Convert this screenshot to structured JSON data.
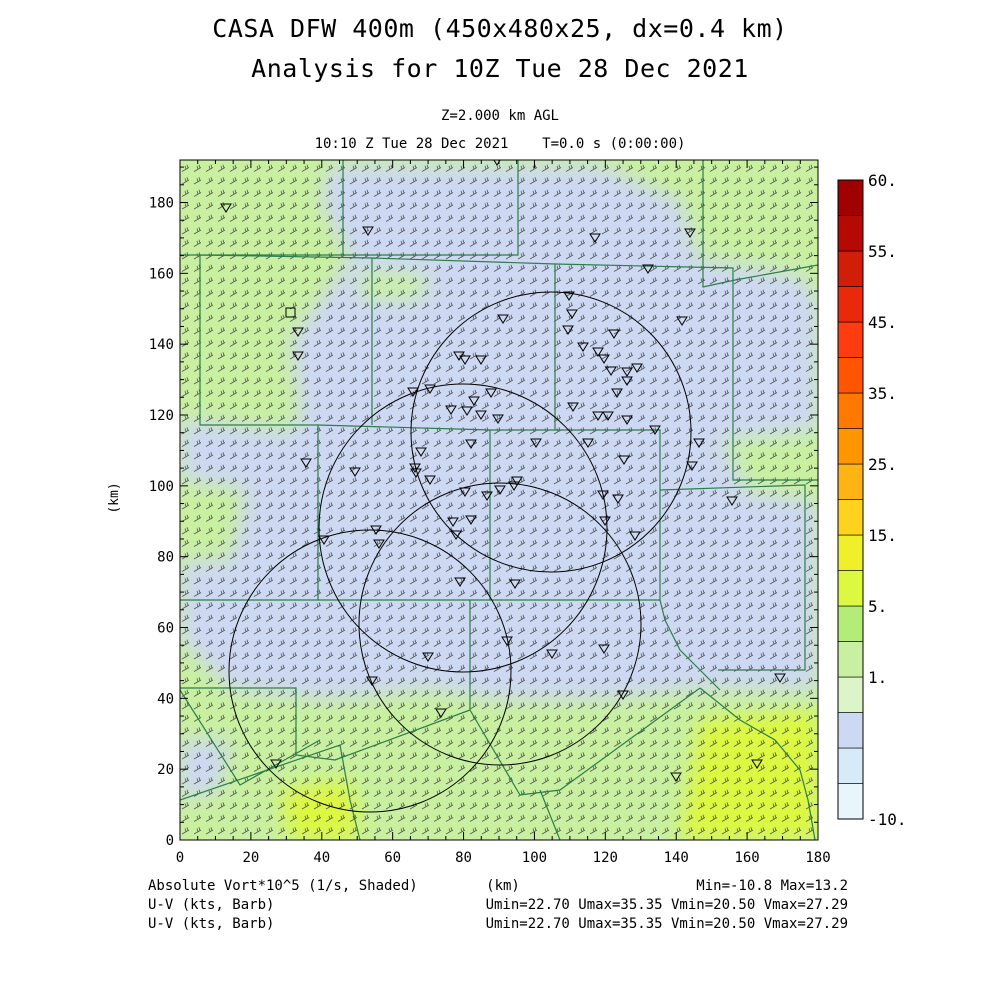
{
  "header": {
    "title_line1": "CASA DFW 400m (450x480x25, dx=0.4 km)",
    "title_line2": "Analysis for 10Z Tue 28 Dec 2021",
    "level": "Z=2.000 km AGL",
    "valid_time": "10:10 Z Tue 28 Dec 2021    T=0.0 s (0:00:00)"
  },
  "axes": {
    "x_ticks": [
      "0",
      "20",
      "40",
      "60",
      "80",
      "100",
      "120",
      "140",
      "160",
      "180"
    ],
    "y_ticks": [
      "0",
      "20",
      "40",
      "60",
      "80",
      "100",
      "120",
      "140",
      "160",
      "180"
    ],
    "x_label": "(km)",
    "y_label": "(km)",
    "x_range_km": [
      0,
      180
    ],
    "y_range_km": [
      0,
      192
    ]
  },
  "colorbar": {
    "labels": [
      "60.",
      "55.",
      "45.",
      "35.",
      "25.",
      "15.",
      "5.",
      "1.",
      "-10."
    ],
    "colors": [
      "#e8f6fc",
      "#d6eaf8",
      "#cdd8f2",
      "#dcf5c8",
      "#c8f0a0",
      "#b4ec78",
      "#dcf840",
      "#f0f02a",
      "#ffd21e",
      "#ffb414",
      "#ff9600",
      "#ff7800",
      "#ff5500",
      "#ff3c10",
      "#e82a0a",
      "#d01e08",
      "#b40a02",
      "#a00000"
    ]
  },
  "map_legend": {
    "field": "Absolute Vort*10^5 (1/s, Shaded)",
    "wind_1": "U-V (kts, Barb)",
    "wind_2": "U-V (kts, Barb)",
    "minmax": "Min=-10.8 Max=13.2",
    "uv_stats_1": "Umin=22.70 Umax=35.35 Vmin=20.50 Vmax=27.29",
    "uv_stats_2": "Umin=22.70 Umax=35.35 Vmin=20.50 Vmax=27.29",
    "center_unit": "(km)"
  },
  "colors": {
    "green_field": "#c8f0a0",
    "bright_green": "#dcf840",
    "lavender_field": "#cdd8f2",
    "county_line": "#2e7d4a",
    "barb": "#444444"
  }
}
